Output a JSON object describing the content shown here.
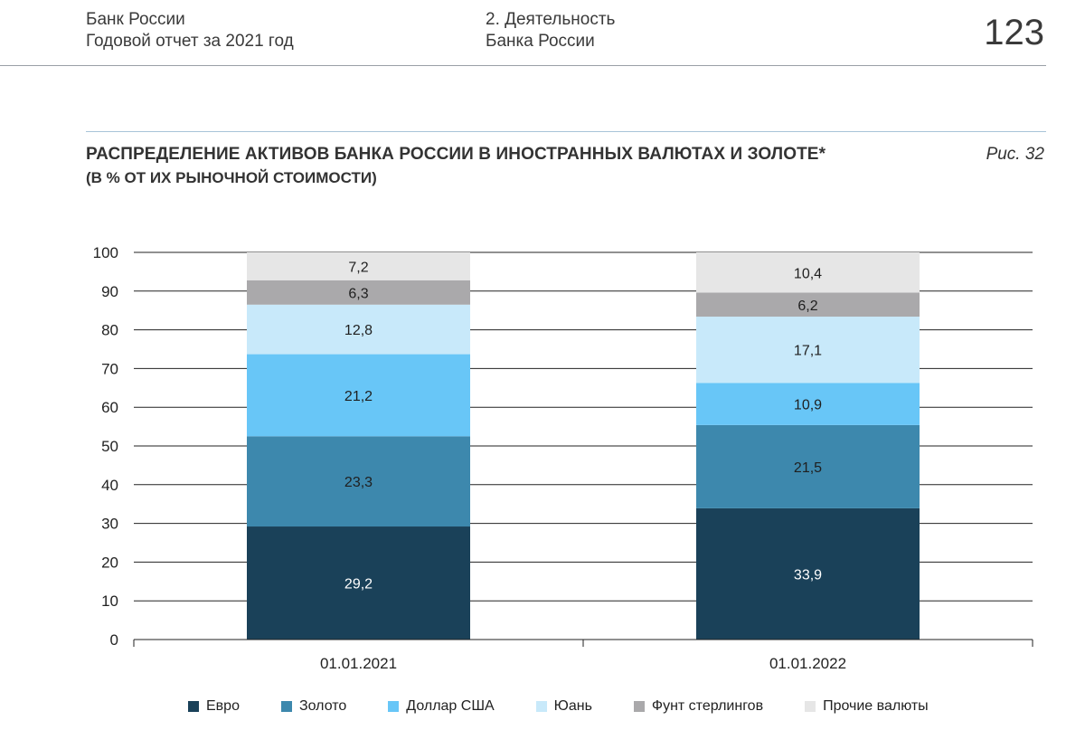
{
  "header": {
    "org_line1": "Банк России",
    "org_line2": "Годовой отчет за 2021 год",
    "section_line1": "2. Деятельность",
    "section_line2": "Банка России",
    "page_number": "123"
  },
  "figure_label": "Рис. 32",
  "chart_data": {
    "type": "bar",
    "stacked": true,
    "title": "РАСПРЕДЕЛЕНИЕ АКТИВОВ БАНКА РОССИИ В ИНОСТРАННЫХ ВАЛЮТАХ И ЗОЛОТЕ*",
    "subtitle": "(В % ОТ ИХ РЫНОЧНОЙ СТОИМОСТИ)",
    "categories": [
      "01.01.2021",
      "01.01.2022"
    ],
    "ylim": [
      0,
      100
    ],
    "yticks": [
      0,
      10,
      20,
      30,
      40,
      50,
      60,
      70,
      80,
      90,
      100
    ],
    "grid": true,
    "legend_position": "bottom",
    "series": [
      {
        "name": "Евро",
        "values": [
          29.2,
          33.9
        ],
        "labels": [
          "29,2",
          "33,9"
        ],
        "color": "#1a4159",
        "label_color": "#ffffff"
      },
      {
        "name": "Золото",
        "values": [
          23.3,
          21.5
        ],
        "labels": [
          "23,3",
          "21,5"
        ],
        "color": "#3d88ad",
        "label_color": "#1f1f1f"
      },
      {
        "name": "Доллар США",
        "values": [
          21.2,
          10.9
        ],
        "labels": [
          "21,2",
          "10,9"
        ],
        "color": "#68c6f7",
        "label_color": "#1f1f1f"
      },
      {
        "name": "Юань",
        "values": [
          12.8,
          17.1
        ],
        "labels": [
          "12,8",
          "17,1"
        ],
        "color": "#c8e9fa",
        "label_color": "#1f1f1f"
      },
      {
        "name": "Фунт стерлингов",
        "values": [
          6.3,
          6.2
        ],
        "labels": [
          "6,3",
          "6,2"
        ],
        "color": "#aaa9ab",
        "label_color": "#1f1f1f"
      },
      {
        "name": "Прочие валюты",
        "values": [
          7.2,
          10.4
        ],
        "labels": [
          "7,2",
          "10,4"
        ],
        "color": "#e6e6e6",
        "label_color": "#1f1f1f"
      }
    ]
  }
}
